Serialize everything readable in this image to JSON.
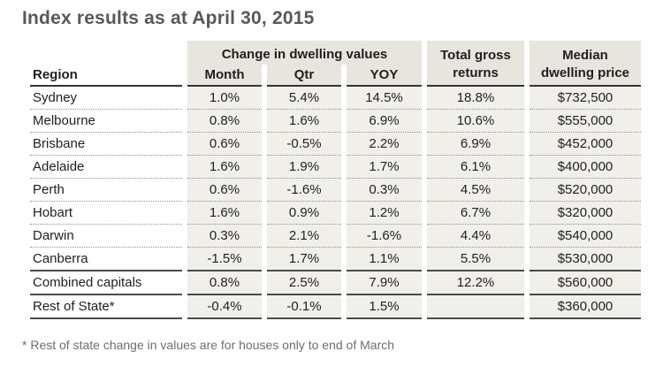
{
  "title": "Index results as at April 30, 2015",
  "footnote": "* Rest of state change in values are for houses only to end of March",
  "colors": {
    "header_fill": "#e8e5df",
    "cell_fill": "#f1efe9",
    "title_text": "#57585a",
    "body_text": "#1f1f1f",
    "footnote_text": "#6d6e71",
    "strong_rule": "#343434",
    "dotted_rule": "#91908c"
  },
  "table": {
    "header": {
      "region": "Region",
      "group": "Change in dwelling values",
      "subcols": [
        "Month",
        "Qtr",
        "YOY"
      ],
      "total_gross_line1": "Total gross",
      "total_gross_line2": "returns",
      "median_line1": "Median",
      "median_line2": "dwelling price"
    },
    "rows": [
      {
        "region": "Sydney",
        "month": "1.0%",
        "qtr": "5.4%",
        "yoy": "14.5%",
        "total_gross": "18.8%",
        "median": "$732,500"
      },
      {
        "region": "Melbourne",
        "month": "0.8%",
        "qtr": "1.6%",
        "yoy": "6.9%",
        "total_gross": "10.6%",
        "median": "$555,000"
      },
      {
        "region": "Brisbane",
        "month": "0.6%",
        "qtr": "-0.5%",
        "yoy": "2.2%",
        "total_gross": "6.9%",
        "median": "$452,000"
      },
      {
        "region": "Adelaide",
        "month": "1.6%",
        "qtr": "1.9%",
        "yoy": "1.7%",
        "total_gross": "6.1%",
        "median": "$400,000"
      },
      {
        "region": "Perth",
        "month": "0.6%",
        "qtr": "-1.6%",
        "yoy": "0.3%",
        "total_gross": "4.5%",
        "median": "$520,000"
      },
      {
        "region": "Hobart",
        "month": "1.6%",
        "qtr": "0.9%",
        "yoy": "1.2%",
        "total_gross": "6.7%",
        "median": "$320,000"
      },
      {
        "region": "Darwin",
        "month": "0.3%",
        "qtr": "2.1%",
        "yoy": "-1.6%",
        "total_gross": "4.4%",
        "median": "$540,000"
      },
      {
        "region": "Canberra",
        "month": "-1.5%",
        "qtr": "1.7%",
        "yoy": "1.1%",
        "total_gross": "5.5%",
        "median": "$530,000"
      },
      {
        "region": "Combined capitals",
        "month": "0.8%",
        "qtr": "2.5%",
        "yoy": "7.9%",
        "total_gross": "12.2%",
        "median": "$560,000"
      },
      {
        "region": "Rest of State*",
        "month": "-0.4%",
        "qtr": "-0.1%",
        "yoy": "1.5%",
        "total_gross": "",
        "median": "$360,000"
      }
    ]
  },
  "chart_data": {
    "type": "table",
    "title": "Index results as at April 30, 2015",
    "columns": [
      "Region",
      "Month",
      "Qtr",
      "YOY",
      "Total gross returns",
      "Median dwelling price"
    ],
    "column_groups": [
      {
        "label": "Change in dwelling values",
        "spans": [
          "Month",
          "Qtr",
          "YOY"
        ]
      }
    ],
    "rows": [
      [
        "Sydney",
        "1.0%",
        "5.4%",
        "14.5%",
        "18.8%",
        "$732,500"
      ],
      [
        "Melbourne",
        "0.8%",
        "1.6%",
        "6.9%",
        "10.6%",
        "$555,000"
      ],
      [
        "Brisbane",
        "0.6%",
        "-0.5%",
        "2.2%",
        "6.9%",
        "$452,000"
      ],
      [
        "Adelaide",
        "1.6%",
        "1.9%",
        "1.7%",
        "6.1%",
        "$400,000"
      ],
      [
        "Perth",
        "0.6%",
        "-1.6%",
        "0.3%",
        "4.5%",
        "$520,000"
      ],
      [
        "Hobart",
        "1.6%",
        "0.9%",
        "1.2%",
        "6.7%",
        "$320,000"
      ],
      [
        "Darwin",
        "0.3%",
        "2.1%",
        "-1.6%",
        "4.4%",
        "$540,000"
      ],
      [
        "Canberra",
        "-1.5%",
        "1.7%",
        "1.1%",
        "5.5%",
        "$530,000"
      ],
      [
        "Combined capitals",
        "0.8%",
        "2.5%",
        "7.9%",
        "12.2%",
        "$560,000"
      ],
      [
        "Rest of State*",
        "-0.4%",
        "-0.1%",
        "1.5%",
        "",
        "$360,000"
      ]
    ],
    "footnote": "* Rest of state change in values are for houses only to end of March"
  }
}
